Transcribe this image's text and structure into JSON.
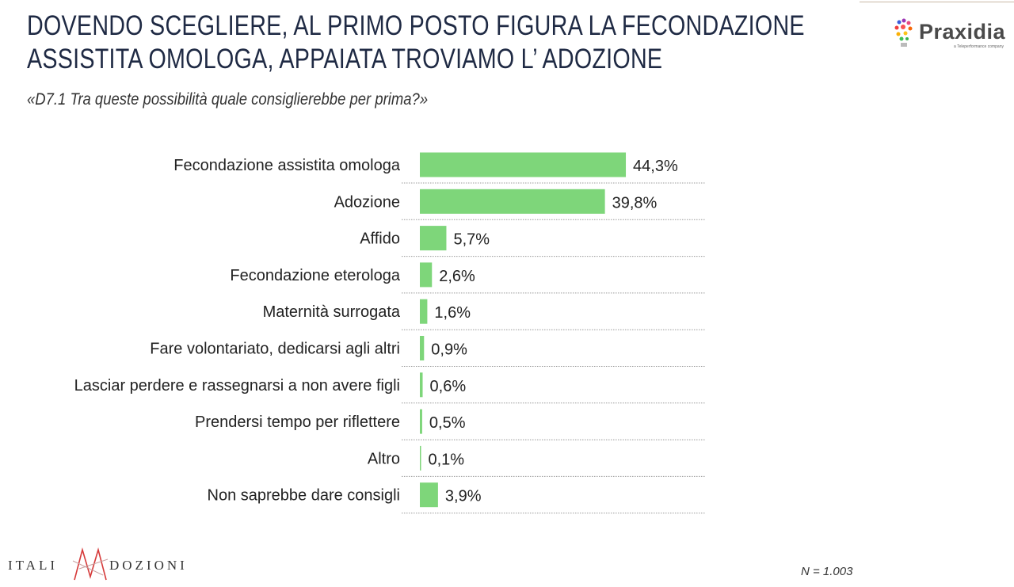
{
  "header": {
    "title_line1": "DOVENDO SCEGLIERE, AL PRIMO POSTO FIGURA LA FECONDAZIONE",
    "title_line2": "ASSISTITA OMOLOGA, APPAIATA TROVIAMO L’ ADOZIONE",
    "question": "«D7.1 Tra queste possibilità quale consiglierebbe per prima?»"
  },
  "logos": {
    "praxidia": "Praxidia",
    "praxidia_tagline": "a Teleperformance company",
    "italiadozioni_left": "ITALI",
    "italiadozioni_right": "DOZIONI"
  },
  "footer": {
    "sample": "N = 1.003"
  },
  "colors": {
    "bar": "#7ed67a",
    "separator": "#999999"
  },
  "chart_data": {
    "type": "bar",
    "orientation": "horizontal",
    "categories": [
      "Fecondazione assistita  omologa",
      "Adozione",
      "Affido",
      "Fecondazione eterologa",
      "Maternità surrogata",
      "Fare volontariato, dedicarsi agli altri",
      "Lasciar perdere e rassegnarsi a non avere figli",
      "Prendersi tempo per riflettere",
      "Altro",
      "Non saprebbe dare consigli"
    ],
    "values": [
      44.3,
      39.8,
      5.7,
      2.6,
      1.6,
      0.9,
      0.6,
      0.5,
      0.1,
      3.9
    ],
    "data_labels": [
      "44,3%",
      "39,8%",
      "5,7%",
      "2,6%",
      "1,6%",
      "0,9%",
      "0,6%",
      "0,5%",
      "0,1%",
      "3,9%"
    ],
    "unit": "%",
    "grid": false
  }
}
